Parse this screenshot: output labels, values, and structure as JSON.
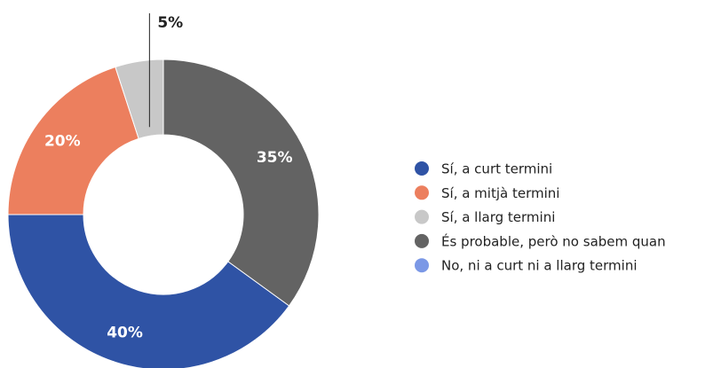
{
  "chart_data": {
    "type": "pie",
    "categories": [
      "Sí, a curt termini",
      "Sí, a mitjà termini",
      "Sí, a llarg termini",
      "És probable, però no sabem quan",
      "No, ni a curt ni a llarg termini"
    ],
    "values": [
      40,
      20,
      5,
      35,
      0
    ],
    "value_labels": [
      "40%",
      "20%",
      "5%",
      "35%",
      null
    ],
    "colors": [
      "#2f53a5",
      "#ec7f5e",
      "#c8c8c8",
      "#636363",
      "#7b98e6"
    ],
    "legend": "right"
  }
}
